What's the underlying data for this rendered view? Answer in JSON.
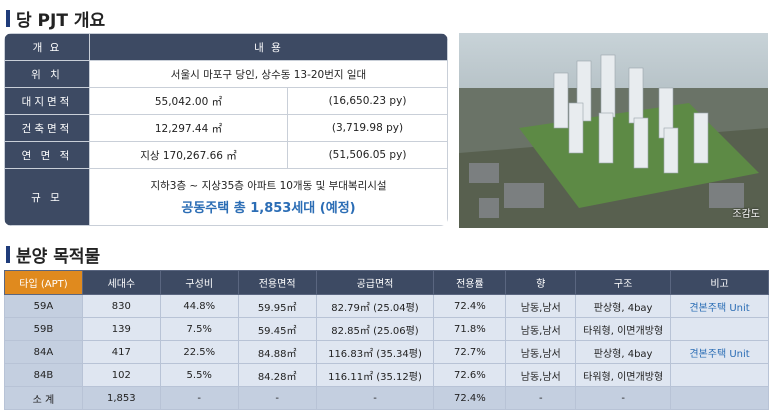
{
  "section1": {
    "title": "당 PJT 개요"
  },
  "overview": {
    "header": {
      "label": "개 요",
      "value": "내 용"
    },
    "location": {
      "label": "위 치",
      "value": "서울시 마포구 당인, 상수동 13-20번지 일대"
    },
    "land_area": {
      "label": "대지면적",
      "m2": "55,042.00 ㎡",
      "py": "(16,650.23 py)"
    },
    "building_area": {
      "label": "건축면적",
      "m2": "12,297.44 ㎡",
      "py": "(3,719.98 py)"
    },
    "gross_area": {
      "label": "연 면 적",
      "m2": "지상 170,267.66 ㎡",
      "py": "(51,506.05 py)"
    },
    "scale": {
      "label": "규 모",
      "line1": "지하3층 ~ 지상35층 아파트 10개동 및 부대복리시설",
      "line2": "공동주택 총 1,853세대 (예정)"
    }
  },
  "photo": {
    "caption": "조감도"
  },
  "section2": {
    "title": "분양 목적물"
  },
  "sales": {
    "headers": [
      "타입 (APT)",
      "세대수",
      "구성비",
      "전용면적",
      "공급면적",
      "전용률",
      "향",
      "구조",
      "비고"
    ],
    "rows": [
      [
        "59A",
        "830",
        "44.8%",
        "59.95㎡",
        "82.79㎡ (25.04평)",
        "72.4%",
        "남동,남서",
        "판상형, 4bay",
        "견본주택 Unit"
      ],
      [
        "59B",
        "139",
        "7.5%",
        "59.45㎡",
        "82.85㎡ (25.06평)",
        "71.8%",
        "남동,남서",
        "타워형, 이면개방형",
        ""
      ],
      [
        "84A",
        "417",
        "22.5%",
        "84.88㎡",
        "116.83㎡ (35.34평)",
        "72.7%",
        "남동,남서",
        "판상형, 4bay",
        "견본주택 Unit"
      ],
      [
        "84B",
        "102",
        "5.5%",
        "84.28㎡",
        "116.11㎡ (35.12평)",
        "72.6%",
        "남동,남서",
        "타워형, 이면개방형",
        ""
      ]
    ],
    "total": [
      "소 계",
      "1,853",
      "-",
      "-",
      "-",
      "72.4%",
      "-",
      "-",
      ""
    ]
  }
}
